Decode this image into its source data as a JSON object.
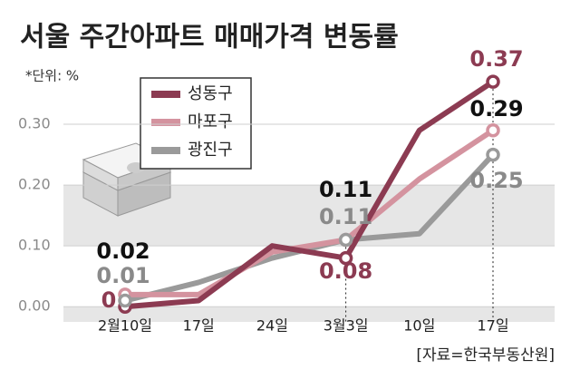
{
  "chart_data": {
    "type": "line",
    "title": "서울 주간아파트 매매가격 변동률",
    "subtitle": "*단위: %",
    "source": "[자료=한국부동산원]",
    "categories": [
      "2월10일",
      "17일",
      "24일",
      "3월3일",
      "10일",
      "17일"
    ],
    "series": [
      {
        "name": "성동구",
        "color": "#8c3b52",
        "values": [
          0,
          0.01,
          0.1,
          0.08,
          0.29,
          0.37
        ],
        "value_labels": [
          "0",
          null,
          null,
          "0.08",
          null,
          "0.37"
        ],
        "label_color": "#8c3b52"
      },
      {
        "name": "마포구",
        "color": "#d4939f",
        "values": [
          0.02,
          0.02,
          0.09,
          0.11,
          0.21,
          0.29
        ],
        "value_labels": [
          "0.02",
          null,
          null,
          "0.11",
          null,
          "0.29"
        ],
        "label_color": "#111111"
      },
      {
        "name": "광진구",
        "color": "#9a9a9a",
        "values": [
          0.01,
          0.04,
          0.08,
          0.11,
          0.12,
          0.25
        ],
        "value_labels": [
          "0.01",
          null,
          null,
          "0.11",
          null,
          "0.25"
        ],
        "label_color": "#8a8a8a"
      }
    ],
    "ylim": [
      -0.025,
      0.4
    ],
    "yticks": [
      {
        "value": 0,
        "label": "0.00"
      },
      {
        "value": 0.1,
        "label": "0.10"
      },
      {
        "value": 0.2,
        "label": "0.20"
      },
      {
        "value": 0.3,
        "label": "0.30"
      }
    ],
    "grid": true
  }
}
